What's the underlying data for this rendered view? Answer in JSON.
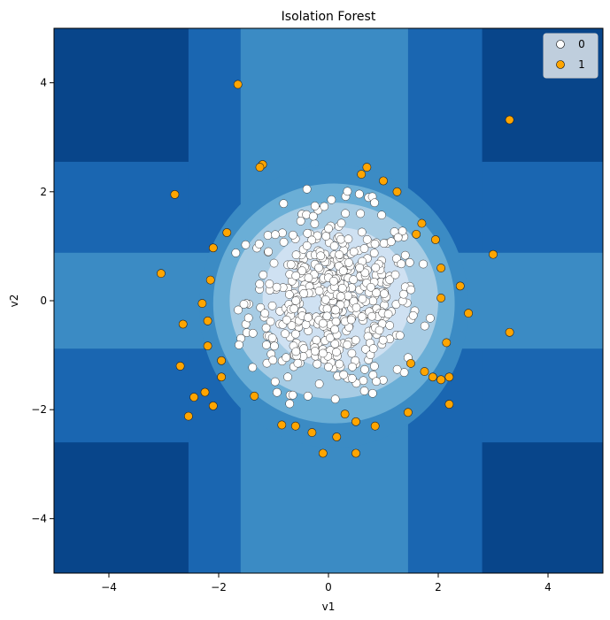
{
  "chart_data": {
    "type": "scatter",
    "title": "Isolation Forest",
    "xlabel": "v1",
    "ylabel": "v2",
    "xlim": [
      -5,
      5
    ],
    "ylim": [
      -5,
      5
    ],
    "xticks": [
      -4,
      -2,
      0,
      2,
      4
    ],
    "yticks": [
      -4,
      -2,
      0,
      2,
      4
    ],
    "xtick_labels": [
      "−4",
      "−2",
      "0",
      "2",
      "4"
    ],
    "ytick_labels": [
      "−4",
      "−2",
      "0",
      "2",
      "4"
    ],
    "grid": false,
    "legend_position": "top-right",
    "background": {
      "type": "contourf",
      "levels_colors": [
        "#08458a",
        "#1a66b1",
        "#3b8bc4",
        "#6aaed6",
        "#a7cce4",
        "#cfe1f2"
      ]
    },
    "series": [
      {
        "name": "1",
        "color": "#ffa500",
        "points": [
          [
            -1.65,
            3.97
          ],
          [
            -1.2,
            2.5
          ],
          [
            -1.25,
            2.45
          ],
          [
            -2.8,
            1.95
          ],
          [
            -3.05,
            0.5
          ],
          [
            -2.3,
            -0.05
          ],
          [
            -2.15,
            0.38
          ],
          [
            -2.1,
            0.97
          ],
          [
            -1.85,
            1.25
          ],
          [
            -2.2,
            -0.37
          ],
          [
            -2.65,
            -0.43
          ],
          [
            -2.2,
            -0.83
          ],
          [
            -1.95,
            -1.1
          ],
          [
            -1.95,
            -1.4
          ],
          [
            -2.7,
            -1.2
          ],
          [
            -2.25,
            -1.68
          ],
          [
            -2.45,
            -1.77
          ],
          [
            -2.1,
            -1.93
          ],
          [
            -2.55,
            -2.12
          ],
          [
            -1.35,
            -1.75
          ],
          [
            -0.85,
            -2.28
          ],
          [
            -0.6,
            -2.3
          ],
          [
            -0.3,
            -2.42
          ],
          [
            -0.1,
            -2.8
          ],
          [
            0.15,
            -2.5
          ],
          [
            0.3,
            -2.08
          ],
          [
            0.5,
            -2.22
          ],
          [
            0.5,
            -2.8
          ],
          [
            0.85,
            -2.3
          ],
          [
            1.45,
            -2.05
          ],
          [
            1.5,
            -1.15
          ],
          [
            1.75,
            -1.3
          ],
          [
            1.9,
            -1.4
          ],
          [
            2.05,
            -1.45
          ],
          [
            2.2,
            -1.4
          ],
          [
            2.2,
            -1.9
          ],
          [
            2.15,
            -0.77
          ],
          [
            2.05,
            0.05
          ],
          [
            2.05,
            0.6
          ],
          [
            1.95,
            1.12
          ],
          [
            1.7,
            1.42
          ],
          [
            1.6,
            1.22
          ],
          [
            1.25,
            2.0
          ],
          [
            1.0,
            2.2
          ],
          [
            0.7,
            2.45
          ],
          [
            0.6,
            2.32
          ],
          [
            2.4,
            0.27
          ],
          [
            2.55,
            -0.23
          ],
          [
            3.0,
            0.85
          ],
          [
            3.3,
            -0.58
          ],
          [
            3.3,
            3.32
          ]
        ]
      },
      {
        "name": "0",
        "color": "#ffffff"
      }
    ]
  }
}
